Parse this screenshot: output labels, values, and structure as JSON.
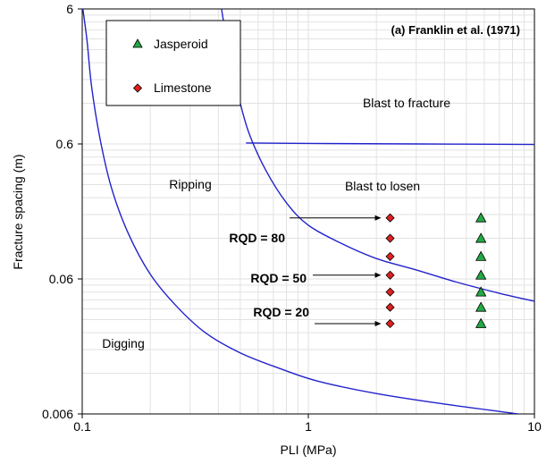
{
  "chart_data": {
    "type": "scatter",
    "title": "(a) Franklin et al. (1971)",
    "xlabel": "PLI (MPa)",
    "ylabel": "Fracture spacing (m)",
    "x_scale": "log",
    "y_scale": "log",
    "xlim": [
      0.1,
      10
    ],
    "ylim": [
      0.006,
      6
    ],
    "x_ticks": [
      "0.1",
      "1",
      "10"
    ],
    "y_ticks": [
      "0.006",
      "0.06",
      "0.6",
      "6"
    ],
    "grid": true,
    "legend_position": "top-left",
    "series": [
      {
        "name": "Jasperoid",
        "marker": "triangle",
        "color": "#22aa44",
        "points": [
          [
            5.8,
            0.17
          ],
          [
            5.8,
            0.12
          ],
          [
            5.8,
            0.088
          ],
          [
            5.8,
            0.064
          ],
          [
            5.8,
            0.048
          ],
          [
            5.8,
            0.037
          ],
          [
            5.8,
            0.028
          ]
        ]
      },
      {
        "name": "Limestone",
        "marker": "diamond",
        "color": "#e02020",
        "points": [
          [
            2.3,
            0.17
          ],
          [
            2.3,
            0.12
          ],
          [
            2.3,
            0.088
          ],
          [
            2.3,
            0.064
          ],
          [
            2.3,
            0.048
          ],
          [
            2.3,
            0.037
          ],
          [
            2.3,
            0.028
          ]
        ]
      }
    ],
    "boundaries": [
      {
        "points": [
          [
            0.1,
            6.5
          ],
          [
            0.105,
            3.5
          ],
          [
            0.11,
            1.6
          ],
          [
            0.12,
            0.65
          ],
          [
            0.135,
            0.28
          ],
          [
            0.16,
            0.13
          ],
          [
            0.2,
            0.065
          ],
          [
            0.26,
            0.038
          ],
          [
            0.35,
            0.024
          ],
          [
            0.5,
            0.017
          ],
          [
            0.75,
            0.013
          ],
          [
            1.1,
            0.0105
          ],
          [
            2,
            0.0085
          ],
          [
            4,
            0.0071
          ],
          [
            8.5,
            0.006
          ]
        ]
      },
      {
        "points": [
          [
            0.41,
            6.5
          ],
          [
            0.43,
            4
          ],
          [
            0.46,
            2.2
          ],
          [
            0.5,
            1.2
          ],
          [
            0.55,
            0.7
          ],
          [
            0.65,
            0.38
          ],
          [
            0.8,
            0.22
          ],
          [
            1,
            0.15
          ],
          [
            1.4,
            0.11
          ],
          [
            2,
            0.085
          ],
          [
            3,
            0.07
          ],
          [
            4.5,
            0.057
          ],
          [
            7,
            0.047
          ],
          [
            10,
            0.041
          ]
        ]
      },
      {
        "points": [
          [
            0.53,
            0.61
          ],
          [
            1,
            0.605
          ],
          [
            3,
            0.6
          ],
          [
            10,
            0.595
          ]
        ]
      }
    ],
    "annotations": [
      {
        "text": "RQD = 80",
        "at": [
          2.3,
          0.17
        ]
      },
      {
        "text": "RQD = 50",
        "at": [
          2.3,
          0.064
        ]
      },
      {
        "text": "RQD = 20",
        "at": [
          2.3,
          0.028
        ]
      }
    ],
    "region_labels": [
      "Blast to fracture",
      "Ripping",
      "Blast to losen",
      "Digging"
    ]
  }
}
